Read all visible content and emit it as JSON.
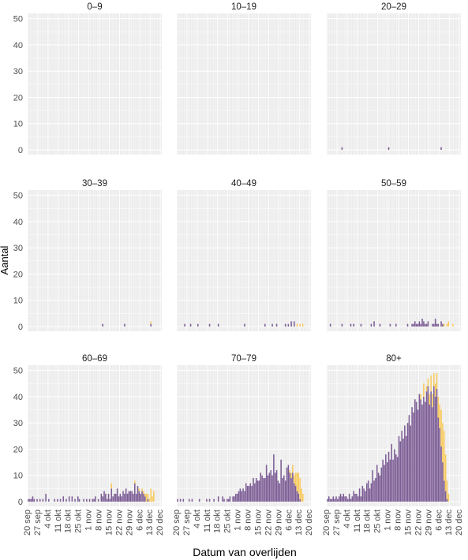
{
  "chart_data": {
    "type": "bar",
    "stacked": true,
    "facet_layout": "3x3 grid",
    "xlabel": "Datum van overlijden",
    "ylabel": "Aantal",
    "ylim": [
      0,
      52
    ],
    "y_ticks": [
      0,
      10,
      20,
      30,
      40,
      50
    ],
    "x_range_days": 92,
    "x_ticks": [
      "20 sep",
      "27 sep",
      "4 okt",
      "11 okt",
      "18 okt",
      "25 okt",
      "1 nov",
      "8 nov",
      "15 nov",
      "22 nov",
      "29 nov",
      "6 dec",
      "13 dec",
      "20 dec"
    ],
    "grid": true,
    "colors": {
      "primary": "#7b5c94",
      "secondary": "#f7c95c",
      "panel_bg": "#ebebeb",
      "grid": "#ffffff",
      "background": "#ffffff"
    },
    "panels": [
      {
        "label": "0–9",
        "base": [],
        "extra": []
      },
      {
        "label": "10–19",
        "base": [],
        "extra": []
      },
      {
        "label": "20–29",
        "base": [
          [
            10,
            1
          ],
          [
            42,
            1
          ],
          [
            78,
            1
          ]
        ],
        "extra": []
      },
      {
        "label": "30–39",
        "base": [
          [
            51,
            1
          ],
          [
            66,
            1
          ],
          [
            84,
            1
          ]
        ],
        "extra": [
          [
            84,
            1
          ]
        ]
      },
      {
        "label": "40–49",
        "base": [
          [
            5,
            1
          ],
          [
            9,
            1
          ],
          [
            14,
            1
          ],
          [
            22,
            1
          ],
          [
            28,
            1
          ],
          [
            46,
            1
          ],
          [
            60,
            1
          ],
          [
            65,
            1
          ],
          [
            68,
            1
          ],
          [
            74,
            1
          ],
          [
            76,
            1
          ],
          [
            78,
            2
          ],
          [
            80,
            2
          ]
        ],
        "extra": [
          [
            82,
            1
          ],
          [
            84,
            1
          ],
          [
            86,
            1
          ]
        ]
      },
      {
        "label": "50–59",
        "base": [
          [
            2,
            1
          ],
          [
            10,
            1
          ],
          [
            16,
            1
          ],
          [
            18,
            1
          ],
          [
            23,
            1
          ],
          [
            30,
            1
          ],
          [
            32,
            2
          ],
          [
            36,
            1
          ],
          [
            43,
            1
          ],
          [
            47,
            1
          ],
          [
            55,
            1
          ],
          [
            58,
            1
          ],
          [
            59,
            1
          ],
          [
            60,
            2
          ],
          [
            61,
            1
          ],
          [
            62,
            1
          ],
          [
            63,
            2
          ],
          [
            64,
            1
          ],
          [
            65,
            3
          ],
          [
            66,
            2
          ],
          [
            67,
            1
          ],
          [
            68,
            1
          ],
          [
            69,
            2
          ],
          [
            72,
            1
          ],
          [
            73,
            1
          ],
          [
            74,
            3
          ],
          [
            75,
            1
          ],
          [
            76,
            1
          ],
          [
            78,
            2
          ],
          [
            79,
            1
          ]
        ],
        "extra": [
          [
            80,
            1
          ],
          [
            82,
            1
          ],
          [
            83,
            2
          ],
          [
            86,
            1
          ]
        ]
      },
      {
        "label": "60–69",
        "base": [
          [
            0,
            1
          ],
          [
            1,
            1
          ],
          [
            2,
            1
          ],
          [
            3,
            2
          ],
          [
            4,
            1
          ],
          [
            6,
            1
          ],
          [
            8,
            1
          ],
          [
            10,
            1
          ],
          [
            12,
            3
          ],
          [
            14,
            1
          ],
          [
            18,
            1
          ],
          [
            20,
            1
          ],
          [
            22,
            1
          ],
          [
            24,
            2
          ],
          [
            26,
            1
          ],
          [
            28,
            2
          ],
          [
            30,
            2
          ],
          [
            32,
            1
          ],
          [
            34,
            2
          ],
          [
            35,
            1
          ],
          [
            38,
            1
          ],
          [
            40,
            1
          ],
          [
            42,
            1
          ],
          [
            44,
            1
          ],
          [
            45,
            1
          ],
          [
            46,
            2
          ],
          [
            48,
            1
          ],
          [
            50,
            3
          ],
          [
            51,
            2
          ],
          [
            52,
            4
          ],
          [
            53,
            3
          ],
          [
            54,
            1
          ],
          [
            55,
            3
          ],
          [
            56,
            1
          ],
          [
            57,
            5
          ],
          [
            58,
            2
          ],
          [
            59,
            3
          ],
          [
            60,
            3
          ],
          [
            61,
            5
          ],
          [
            62,
            2
          ],
          [
            63,
            3
          ],
          [
            64,
            2
          ],
          [
            65,
            4
          ],
          [
            66,
            3
          ],
          [
            67,
            5
          ],
          [
            68,
            3
          ],
          [
            69,
            4
          ],
          [
            70,
            4
          ],
          [
            71,
            4
          ],
          [
            72,
            3
          ],
          [
            73,
            7
          ],
          [
            74,
            3
          ],
          [
            75,
            6
          ],
          [
            76,
            4
          ],
          [
            77,
            3
          ],
          [
            78,
            4
          ],
          [
            79,
            3
          ],
          [
            80,
            2
          ],
          [
            82,
            1
          ]
        ],
        "extra": [
          [
            57,
            2
          ],
          [
            73,
            1
          ],
          [
            76,
            1
          ],
          [
            78,
            1
          ],
          [
            79,
            1
          ],
          [
            80,
            1
          ],
          [
            81,
            3
          ],
          [
            82,
            2
          ],
          [
            83,
            1
          ],
          [
            84,
            5
          ],
          [
            85,
            2
          ],
          [
            86,
            4
          ]
        ]
      },
      {
        "label": "70–79",
        "base": [
          [
            0,
            1
          ],
          [
            2,
            1
          ],
          [
            4,
            1
          ],
          [
            8,
            1
          ],
          [
            10,
            1
          ],
          [
            15,
            1
          ],
          [
            20,
            1
          ],
          [
            22,
            1
          ],
          [
            25,
            1
          ],
          [
            28,
            2
          ],
          [
            31,
            2
          ],
          [
            32,
            1
          ],
          [
            34,
            1
          ],
          [
            35,
            1
          ],
          [
            36,
            2
          ],
          [
            38,
            2
          ],
          [
            39,
            2
          ],
          [
            40,
            3
          ],
          [
            41,
            3
          ],
          [
            42,
            4
          ],
          [
            43,
            5
          ],
          [
            44,
            4
          ],
          [
            45,
            5
          ],
          [
            46,
            4
          ],
          [
            47,
            7
          ],
          [
            48,
            6
          ],
          [
            49,
            6
          ],
          [
            50,
            7
          ],
          [
            51,
            6
          ],
          [
            52,
            9
          ],
          [
            53,
            7
          ],
          [
            54,
            9
          ],
          [
            55,
            8
          ],
          [
            56,
            8
          ],
          [
            57,
            11
          ],
          [
            58,
            10
          ],
          [
            59,
            9
          ],
          [
            60,
            9
          ],
          [
            61,
            14
          ],
          [
            62,
            10
          ],
          [
            63,
            11
          ],
          [
            64,
            12
          ],
          [
            65,
            10
          ],
          [
            66,
            18
          ],
          [
            67,
            11
          ],
          [
            68,
            12
          ],
          [
            69,
            8
          ],
          [
            70,
            7
          ],
          [
            71,
            16
          ],
          [
            72,
            9
          ],
          [
            73,
            10
          ],
          [
            74,
            8
          ],
          [
            75,
            13
          ],
          [
            76,
            14
          ],
          [
            77,
            11
          ],
          [
            78,
            9
          ],
          [
            79,
            11
          ],
          [
            80,
            7
          ],
          [
            81,
            6
          ],
          [
            82,
            4
          ],
          [
            83,
            3
          ],
          [
            84,
            1
          ]
        ],
        "extra": [
          [
            77,
            1
          ],
          [
            78,
            2
          ],
          [
            79,
            3
          ],
          [
            80,
            3
          ],
          [
            81,
            5
          ],
          [
            82,
            7
          ],
          [
            83,
            8
          ],
          [
            84,
            8
          ],
          [
            85,
            5
          ],
          [
            86,
            3
          ]
        ]
      },
      {
        "label": "80+",
        "base": [
          [
            0,
            1
          ],
          [
            1,
            2
          ],
          [
            2,
            1
          ],
          [
            3,
            1
          ],
          [
            4,
            2
          ],
          [
            5,
            1
          ],
          [
            6,
            2
          ],
          [
            7,
            1
          ],
          [
            8,
            2
          ],
          [
            9,
            3
          ],
          [
            10,
            2
          ],
          [
            11,
            3
          ],
          [
            12,
            2
          ],
          [
            13,
            2
          ],
          [
            14,
            1
          ],
          [
            15,
            3
          ],
          [
            16,
            1
          ],
          [
            17,
            2
          ],
          [
            18,
            4
          ],
          [
            19,
            3
          ],
          [
            20,
            3
          ],
          [
            21,
            2
          ],
          [
            22,
            5
          ],
          [
            23,
            2
          ],
          [
            24,
            6
          ],
          [
            25,
            5
          ],
          [
            26,
            4
          ],
          [
            27,
            7
          ],
          [
            28,
            8
          ],
          [
            29,
            5
          ],
          [
            30,
            7
          ],
          [
            31,
            12
          ],
          [
            32,
            8
          ],
          [
            33,
            9
          ],
          [
            34,
            14
          ],
          [
            35,
            11
          ],
          [
            36,
            10
          ],
          [
            37,
            13
          ],
          [
            38,
            16
          ],
          [
            39,
            14
          ],
          [
            40,
            18
          ],
          [
            41,
            15
          ],
          [
            42,
            19
          ],
          [
            43,
            16
          ],
          [
            44,
            22
          ],
          [
            45,
            16
          ],
          [
            46,
            20
          ],
          [
            47,
            18
          ],
          [
            48,
            17
          ],
          [
            49,
            25
          ],
          [
            50,
            23
          ],
          [
            51,
            27
          ],
          [
            52,
            24
          ],
          [
            53,
            29
          ],
          [
            54,
            25
          ],
          [
            55,
            30
          ],
          [
            56,
            33
          ],
          [
            57,
            29
          ],
          [
            58,
            36
          ],
          [
            59,
            34
          ],
          [
            60,
            39
          ],
          [
            61,
            38
          ],
          [
            62,
            35
          ],
          [
            63,
            41
          ],
          [
            64,
            39
          ],
          [
            65,
            37
          ],
          [
            66,
            40
          ],
          [
            67,
            38
          ],
          [
            68,
            42
          ],
          [
            69,
            44
          ],
          [
            70,
            37
          ],
          [
            71,
            42
          ],
          [
            72,
            36
          ],
          [
            73,
            44
          ],
          [
            74,
            40
          ],
          [
            75,
            43
          ],
          [
            76,
            32
          ],
          [
            77,
            28
          ],
          [
            78,
            21
          ],
          [
            79,
            15
          ],
          [
            80,
            8
          ],
          [
            81,
            4
          ],
          [
            82,
            1
          ]
        ],
        "extra": [
          [
            64,
            2
          ],
          [
            66,
            5
          ],
          [
            68,
            2
          ],
          [
            69,
            3
          ],
          [
            70,
            4
          ],
          [
            71,
            6
          ],
          [
            72,
            5
          ],
          [
            73,
            5
          ],
          [
            74,
            5
          ],
          [
            75,
            6
          ],
          [
            76,
            8
          ],
          [
            77,
            9
          ],
          [
            78,
            14
          ],
          [
            79,
            15
          ],
          [
            80,
            19
          ],
          [
            81,
            14
          ],
          [
            82,
            7
          ],
          [
            83,
            3
          ]
        ]
      }
    ]
  }
}
